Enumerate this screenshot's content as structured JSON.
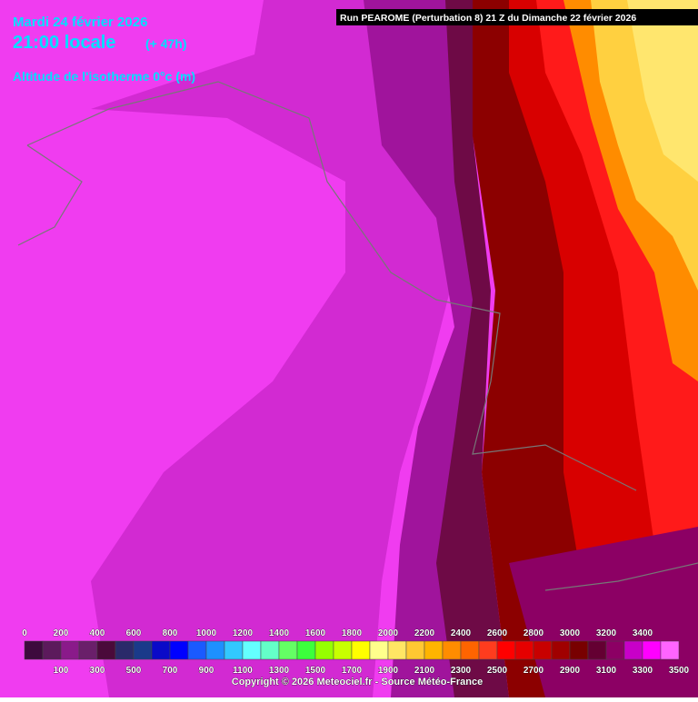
{
  "header": {
    "date": "Mardi 24 février 2026",
    "time": "21:00 locale",
    "lead": "(+ 47h)",
    "parameter": "Altitude de l'isotherme 0°c (m)",
    "run": "Run PEAROME (Perturbation 8) 21 Z du Dimanche 22 février 2026"
  },
  "legend": {
    "levels": [
      {
        "value": 0,
        "color": "#3d0a3d"
      },
      {
        "value": 100,
        "color": "#5c1a5c"
      },
      {
        "value": 200,
        "color": "#8a1a8a"
      },
      {
        "value": 300,
        "color": "#6a1f6a"
      },
      {
        "value": 400,
        "color": "#4a0a3a"
      },
      {
        "value": 500,
        "color": "#2a2a6a"
      },
      {
        "value": 600,
        "color": "#1a3a8a"
      },
      {
        "value": 700,
        "color": "#0a0ac8"
      },
      {
        "value": 800,
        "color": "#0000ff"
      },
      {
        "value": 900,
        "color": "#1a5aff"
      },
      {
        "value": 1000,
        "color": "#1e90ff"
      },
      {
        "value": 1100,
        "color": "#32c8ff"
      },
      {
        "value": 1200,
        "color": "#64ffff"
      },
      {
        "value": 1300,
        "color": "#64ffc8"
      },
      {
        "value": 1400,
        "color": "#64ff64"
      },
      {
        "value": 1500,
        "color": "#3cff3c"
      },
      {
        "value": 1600,
        "color": "#96ff00"
      },
      {
        "value": 1700,
        "color": "#c8ff00"
      },
      {
        "value": 1800,
        "color": "#ffff00"
      },
      {
        "value": 1900,
        "color": "#ffff8c"
      },
      {
        "value": 2000,
        "color": "#ffe664"
      },
      {
        "value": 2100,
        "color": "#ffc832"
      },
      {
        "value": 2200,
        "color": "#ffb400"
      },
      {
        "value": 2300,
        "color": "#ff8c00"
      },
      {
        "value": 2400,
        "color": "#ff6400"
      },
      {
        "value": 2500,
        "color": "#ff3c1e"
      },
      {
        "value": 2600,
        "color": "#ff0000"
      },
      {
        "value": 2700,
        "color": "#e60000"
      },
      {
        "value": 2800,
        "color": "#c80000"
      },
      {
        "value": 2900,
        "color": "#a00000"
      },
      {
        "value": 3000,
        "color": "#780000"
      },
      {
        "value": 3100,
        "color": "#640032"
      },
      {
        "value": 3200,
        "color": "#8c0064"
      },
      {
        "value": 3300,
        "color": "#c800c8"
      },
      {
        "value": 3400,
        "color": "#ff00ff"
      },
      {
        "value": 3500,
        "color": "#ff64ff"
      }
    ]
  },
  "footer": {
    "copyright": "Copyright © 2026 Meteociel.fr - Source Météo-France"
  }
}
